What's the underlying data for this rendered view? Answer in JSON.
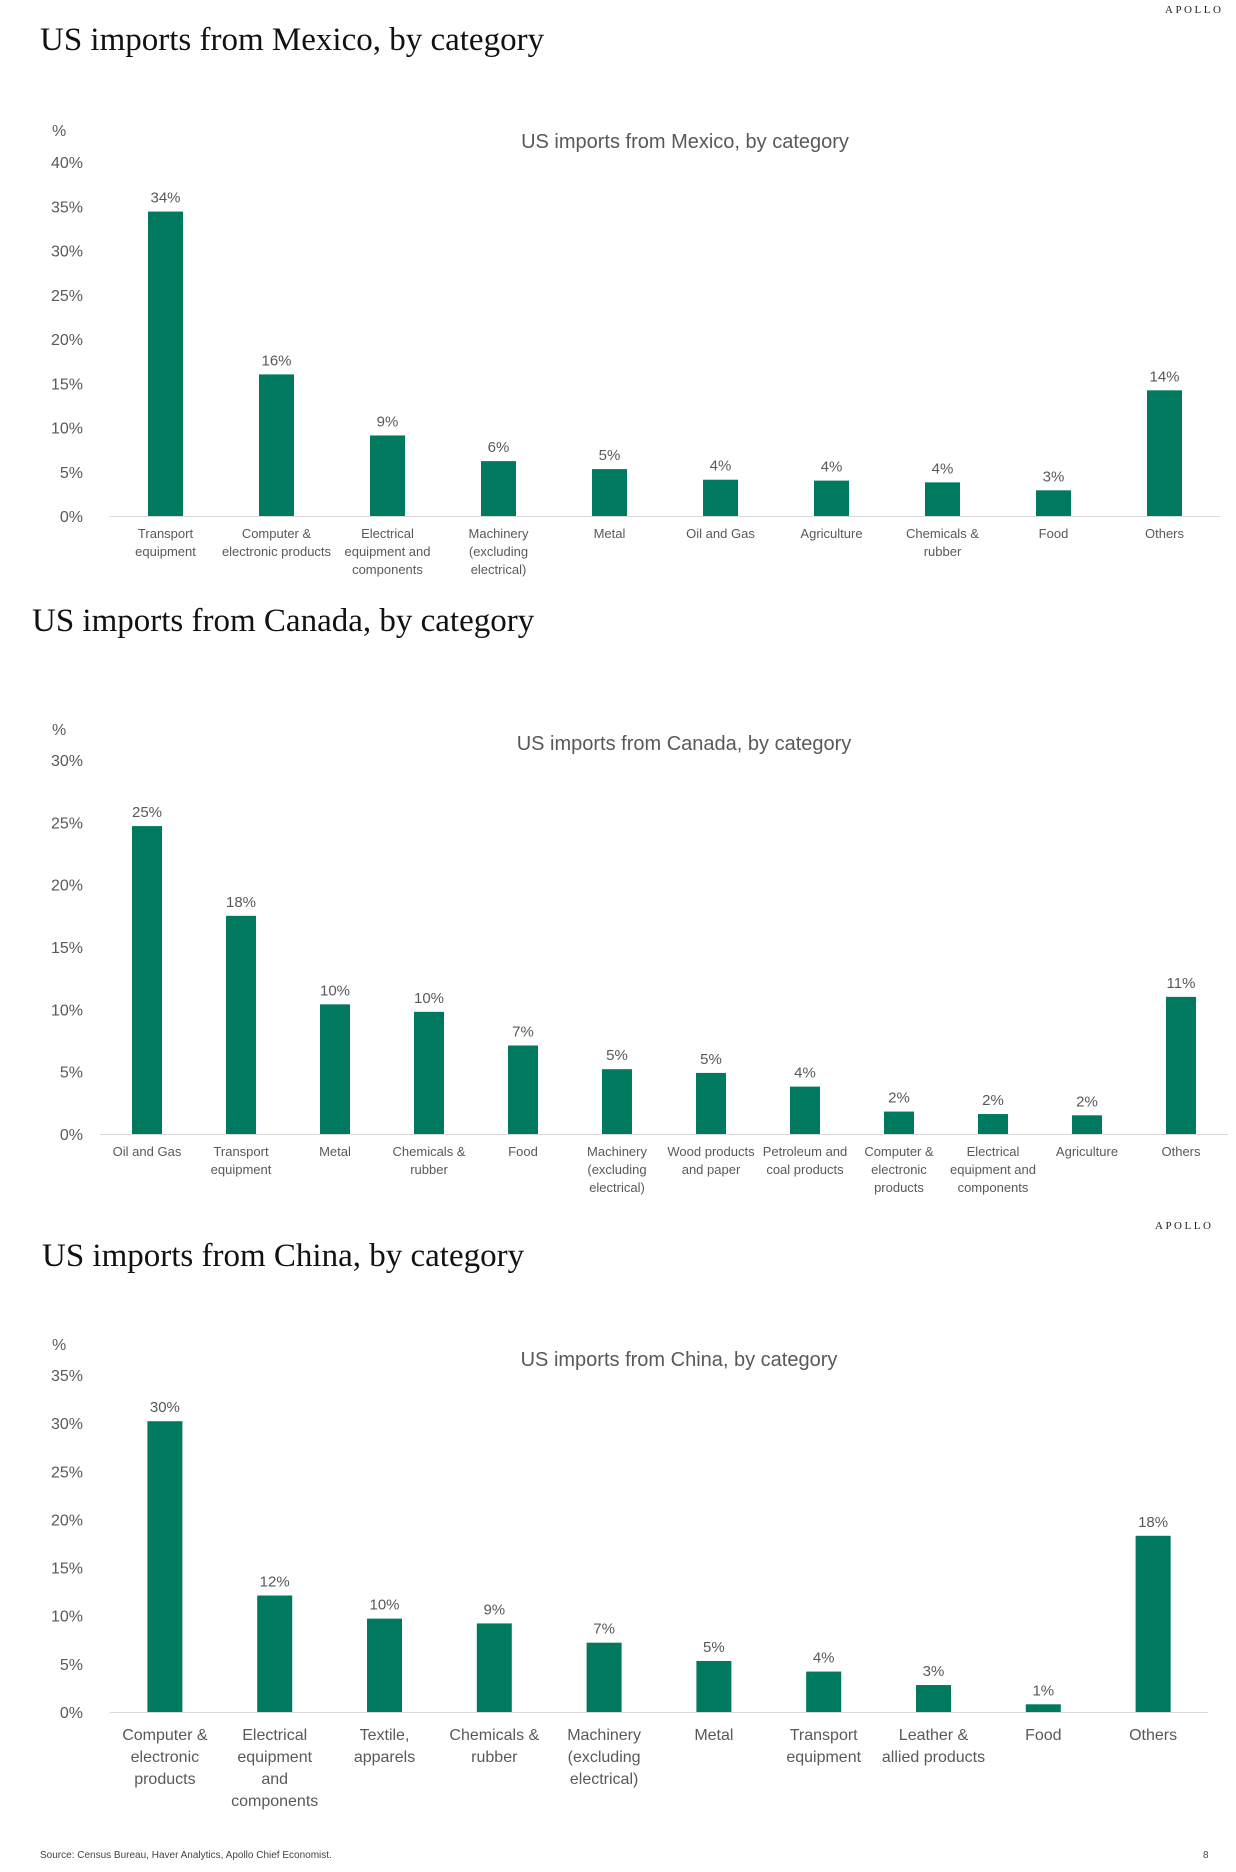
{
  "brand": "APOLLO",
  "sections": [
    {
      "heading": "US imports from Mexico, by category"
    },
    {
      "heading": "US imports from Canada, by category"
    },
    {
      "heading": "US imports from China, by category"
    }
  ],
  "footnote": "Source: Census Bureau, Haver Analytics, Apollo Chief Economist.",
  "page_number": "8",
  "chart_data": [
    {
      "type": "bar",
      "title": "US imports from Mexico, by category",
      "ylabel": "%",
      "ylim": [
        0,
        40
      ],
      "yticks": [
        "0%",
        "5%",
        "10%",
        "15%",
        "20%",
        "25%",
        "30%",
        "35%",
        "40%"
      ],
      "categories": [
        [
          "Transport",
          "equipment"
        ],
        [
          "Computer &",
          "electronic products"
        ],
        [
          "Electrical",
          "equipment and",
          "components"
        ],
        [
          "Machinery",
          "(excluding",
          "electrical)"
        ],
        [
          "Metal"
        ],
        [
          "Oil and Gas"
        ],
        [
          "Agriculture"
        ],
        [
          "Chemicals &",
          "rubber"
        ],
        [
          "Food"
        ],
        [
          "Others"
        ]
      ],
      "values": [
        34.4,
        16.0,
        9.1,
        6.2,
        5.3,
        4.1,
        4.0,
        3.8,
        2.9,
        14.2
      ],
      "data_labels": [
        "34%",
        "16%",
        "9%",
        "6%",
        "5%",
        "4%",
        "4%",
        "4%",
        "3%",
        "14%"
      ],
      "bar_color": "#007A5E",
      "grid": false
    },
    {
      "type": "bar",
      "title": "US imports from Canada, by category",
      "ylabel": "%",
      "ylim": [
        0,
        30
      ],
      "yticks": [
        "0%",
        "5%",
        "10%",
        "15%",
        "20%",
        "25%",
        "30%"
      ],
      "categories": [
        [
          "Oil and Gas"
        ],
        [
          "Transport",
          "equipment"
        ],
        [
          "Metal"
        ],
        [
          "Chemicals &",
          "rubber"
        ],
        [
          "Food"
        ],
        [
          "Machinery",
          "(excluding",
          "electrical)"
        ],
        [
          "Wood products",
          "and paper"
        ],
        [
          "Petroleum and",
          "coal products"
        ],
        [
          "Computer &",
          "electronic",
          "products"
        ],
        [
          "Electrical",
          "equipment and",
          "components"
        ],
        [
          "Agriculture"
        ],
        [
          "Others"
        ]
      ],
      "values": [
        24.7,
        17.5,
        10.4,
        9.8,
        7.1,
        5.2,
        4.9,
        3.8,
        1.8,
        1.6,
        1.5,
        11.0
      ],
      "data_labels": [
        "25%",
        "18%",
        "10%",
        "10%",
        "7%",
        "5%",
        "5%",
        "4%",
        "2%",
        "2%",
        "2%",
        "11%"
      ],
      "bar_color": "#007A5E",
      "grid": false
    },
    {
      "type": "bar",
      "title": "US imports from China, by category",
      "ylabel": "%",
      "ylim": [
        0,
        35
      ],
      "yticks": [
        "0%",
        "5%",
        "10%",
        "15%",
        "20%",
        "25%",
        "30%",
        "35%"
      ],
      "categories": [
        [
          "Computer &",
          "electronic",
          "products"
        ],
        [
          "Electrical",
          "equipment",
          "and",
          "components"
        ],
        [
          "Textile,",
          "apparels"
        ],
        [
          "Chemicals &",
          "rubber"
        ],
        [
          "Machinery",
          "(excluding",
          "electrical)"
        ],
        [
          "Metal"
        ],
        [
          "Transport",
          "equipment"
        ],
        [
          "Leather &",
          "allied products"
        ],
        [
          "Food"
        ],
        [
          "Others"
        ]
      ],
      "values": [
        30.2,
        12.1,
        9.7,
        9.2,
        7.2,
        5.3,
        4.2,
        2.8,
        0.8,
        18.3
      ],
      "data_labels": [
        "30%",
        "12%",
        "10%",
        "9%",
        "7%",
        "5%",
        "4%",
        "3%",
        "1%",
        "18%"
      ],
      "bar_color": "#007A5E",
      "grid": false
    }
  ]
}
